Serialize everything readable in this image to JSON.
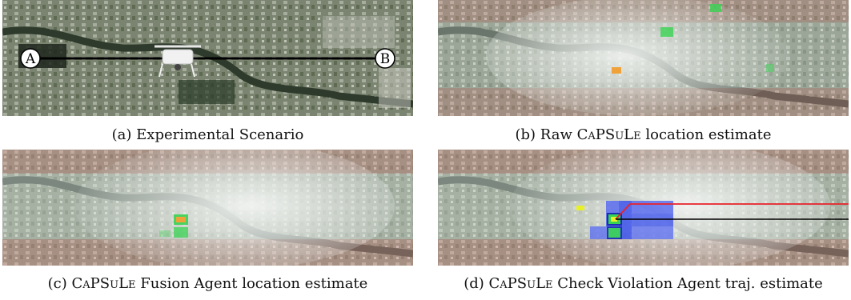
{
  "panels": [
    {
      "id": "a",
      "caption_prefix": "(a) ",
      "caption_sc": "",
      "caption_rest": "Experimental Scenario"
    },
    {
      "id": "b",
      "caption_prefix": "(b) Raw ",
      "caption_sc": "CaPSuLe",
      "caption_rest": " location estimate"
    },
    {
      "id": "c",
      "caption_prefix": "(c) ",
      "caption_sc": "CaPSuLe",
      "caption_rest": " Fusion Agent location estimate"
    },
    {
      "id": "d",
      "caption_prefix": "(d) ",
      "caption_sc": "CaPSuLe",
      "caption_rest": " Check Violation Agent traj. estimate"
    }
  ],
  "markers": {
    "start": "A",
    "end": "B"
  },
  "colors": {
    "map_dark": "#3d4a35",
    "map_light": "#9aa391",
    "heat_red": "#e8a3a3",
    "heat_white": "#f3f5f3",
    "heat_green": "#39d353",
    "heat_orange": "#f0a23a",
    "heat_yellow": "#e8f02a",
    "heat_blue": "#2a40f0",
    "trajectory_red": "#e8222a",
    "trajectory_black": "#000000"
  }
}
